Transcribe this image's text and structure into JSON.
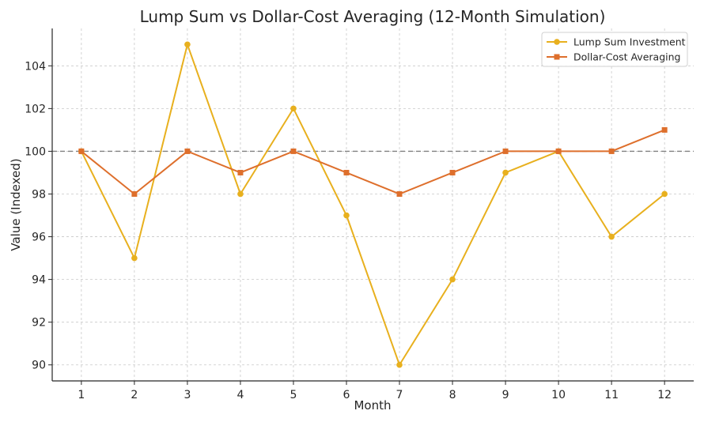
{
  "chart_data": {
    "type": "line",
    "title": "Lump Sum vs Dollar-Cost Averaging (12-Month Simulation)",
    "xlabel": "Month",
    "ylabel": "Value (Indexed)",
    "x": [
      1,
      2,
      3,
      4,
      5,
      6,
      7,
      8,
      9,
      10,
      11,
      12
    ],
    "x_tick_labels": [
      "1",
      "2",
      "3",
      "4",
      "5",
      "6",
      "7",
      "8",
      "9",
      "10",
      "11",
      "12"
    ],
    "y_ticks": [
      90,
      92,
      94,
      96,
      98,
      100,
      102,
      104
    ],
    "y_tick_labels": [
      "90",
      "92",
      "94",
      "96",
      "98",
      "100",
      "102",
      "104"
    ],
    "xlim": [
      0.45,
      12.55
    ],
    "ylim": [
      89.25,
      105.75
    ],
    "grid": true,
    "legend_position": "top-right",
    "reference_line": {
      "y": 100,
      "style": "dashed",
      "color": "#808080"
    },
    "series": [
      {
        "name": "Lump Sum Investment",
        "marker": "circle",
        "color": "#E8B01E",
        "values": [
          100,
          95,
          105,
          98,
          102,
          97,
          90,
          94,
          99,
          100,
          96,
          98
        ]
      },
      {
        "name": "Dollar-Cost Averaging",
        "marker": "square",
        "color": "#DE6F2C",
        "values": [
          100,
          98,
          100,
          99,
          100,
          99,
          98,
          99,
          100,
          100,
          100,
          101
        ]
      }
    ]
  }
}
